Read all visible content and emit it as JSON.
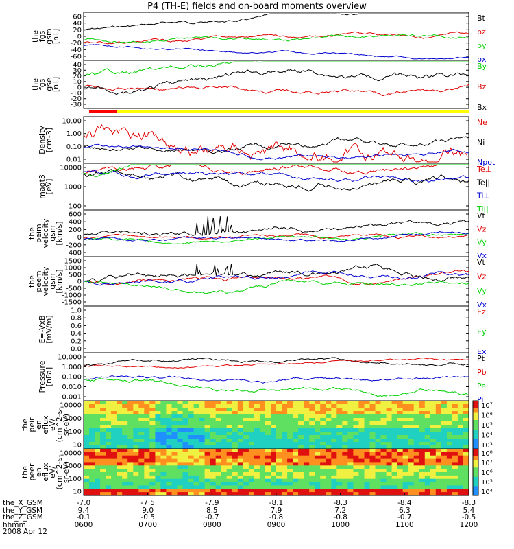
{
  "title": "P4 (TH-E) fields and on-board moments overview",
  "chart_data": [
    {
      "type": "line",
      "panel": "fgs_gsm",
      "ylabel": [
        "the",
        "fgs",
        "gsm",
        "[nT]"
      ],
      "yticks": [
        "60",
        "40",
        "20",
        "0",
        "-20",
        "-40",
        "-60"
      ],
      "ylim": [
        -60,
        65
      ],
      "series": [
        {
          "name": "Bt",
          "color": "#000000"
        },
        {
          "name": "bz",
          "color": "#e00000"
        },
        {
          "name": "by",
          "color": "#00d000"
        },
        {
          "name": "bx",
          "color": "#0000d0"
        }
      ]
    },
    {
      "type": "line",
      "panel": "fgs_dsl",
      "ylabel": [
        "the",
        "fgs",
        "gse",
        "[nT]"
      ],
      "yticks": [
        "40",
        "30",
        "20",
        "10",
        "0",
        "-10",
        "-20",
        "-30"
      ],
      "ylim": [
        -35,
        40
      ],
      "series": [
        {
          "name": "By",
          "color": "#00d000"
        },
        {
          "name": "Bz",
          "color": "#e00000"
        },
        {
          "name": "Bx",
          "color": "#000000"
        }
      ]
    },
    {
      "type": "line",
      "panel": "density",
      "ylabel": [
        "Density",
        "[cm-3]"
      ],
      "yticks": [
        "10.00",
        "1.00",
        "0.10",
        "0.01"
      ],
      "log": true,
      "series": [
        {
          "name": "Ne",
          "color": "#e00000"
        },
        {
          "name": "Ni",
          "color": "#000000"
        },
        {
          "name": "Npot",
          "color": "#0000d0"
        }
      ]
    },
    {
      "type": "line",
      "panel": "temperature",
      "ylabel": [
        "magt3",
        "[eV]"
      ],
      "yticks": [
        "10000",
        "1000",
        "100"
      ],
      "log": true,
      "series": [
        {
          "name": "Te⊥",
          "color": "#e00000"
        },
        {
          "name": "Te||",
          "color": "#000000"
        },
        {
          "name": "Ti⊥",
          "color": "#0000d0"
        },
        {
          "name": "Ti||",
          "color": "#00d000"
        }
      ]
    },
    {
      "type": "line",
      "panel": "peim_velocity",
      "ylabel": [
        "the",
        "peim",
        "velocity",
        "gsm",
        "[km/s]"
      ],
      "yticks": [
        "600",
        "400",
        "200",
        "0",
        "-200",
        "-400"
      ],
      "ylim": [
        -420,
        650
      ],
      "series": [
        {
          "name": "Vt",
          "color": "#000000"
        },
        {
          "name": "Vz",
          "color": "#e00000"
        },
        {
          "name": "Vy",
          "color": "#00d000"
        },
        {
          "name": "Vx",
          "color": "#0000d0"
        }
      ]
    },
    {
      "type": "line",
      "panel": "peem_velocity",
      "ylabel": [
        "the",
        "peem",
        "velocity",
        "gsm",
        "[km/s]"
      ],
      "yticks": [
        "1500",
        "1000",
        "500",
        "0",
        "-500",
        "-1000",
        "-1500"
      ],
      "ylim": [
        -1550,
        1600
      ],
      "series": [
        {
          "name": "Vt",
          "color": "#000000"
        },
        {
          "name": "Vz",
          "color": "#e00000"
        },
        {
          "name": "Vy",
          "color": "#00d000"
        },
        {
          "name": "Vx",
          "color": "#0000d0"
        }
      ]
    },
    {
      "type": "line",
      "panel": "efield",
      "ylabel": [
        "E=-VxB",
        "[mV/m]"
      ],
      "yticks": [
        "1.0",
        "0.8",
        "0.6",
        "0.4",
        "0.2",
        "0.0"
      ],
      "ylim": [
        0,
        1
      ],
      "series": [
        {
          "name": "Ez",
          "color": "#e00000"
        },
        {
          "name": "Ey",
          "color": "#00d000"
        },
        {
          "name": "Ex",
          "color": "#0000d0"
        }
      ]
    },
    {
      "type": "line",
      "panel": "pressure",
      "ylabel": [
        "Pressure",
        "[nPa]"
      ],
      "yticks": [
        "10.000",
        "1.000",
        "0.100",
        "0.010",
        "0.001"
      ],
      "log": true,
      "series": [
        {
          "name": "Pt",
          "color": "#000000"
        },
        {
          "name": "Pb",
          "color": "#e00000"
        },
        {
          "name": "Pe",
          "color": "#00d000"
        },
        {
          "name": "Pi",
          "color": "#0000d0"
        }
      ]
    },
    {
      "type": "heatmap",
      "panel": "peir_spec",
      "ylabel": [
        "the",
        "peir",
        "en",
        "eflux",
        "eV/",
        "(cm^2-s-",
        "sr-eV)"
      ],
      "yticks": [
        "10000",
        "1000",
        "100",
        "10"
      ],
      "colorbar": [
        "10⁷",
        "10⁶",
        "10⁵",
        "10⁴",
        "10³"
      ]
    },
    {
      "type": "heatmap",
      "panel": "peer_spec",
      "ylabel": [
        "the",
        "peer",
        "en",
        "eflux",
        "eV/",
        "(cm^2-s-",
        "sr-eV)"
      ],
      "yticks": [
        "10000",
        "1000",
        "100",
        "10"
      ],
      "colorbar": [
        "10⁸",
        "10⁷",
        "10⁶",
        "10⁵",
        "10⁴"
      ]
    }
  ],
  "xaxis": {
    "row_labels": [
      "the_X_GSM",
      "the_Y_GSM",
      "the_Z_GSM",
      "hhmm",
      "2008 Apr 12"
    ],
    "ticks": [
      {
        "x": "-7.0",
        "y": "9.4",
        "z": "-0.1",
        "t": "0600"
      },
      {
        "x": "-7.5",
        "y": "9.0",
        "z": "-0.5",
        "t": "0700"
      },
      {
        "x": "-7.9",
        "y": "8.5",
        "z": "-0.7",
        "t": "0800"
      },
      {
        "x": "-8.1",
        "y": "7.9",
        "z": "-0.8",
        "t": "0900"
      },
      {
        "x": "-8.3",
        "y": "7.2",
        "z": "-0.8",
        "t": "1000"
      },
      {
        "x": "-8.4",
        "y": "6.3",
        "z": "-0.7",
        "t": "1100"
      },
      {
        "x": "-8.3",
        "y": "5.4",
        "z": "-0.5",
        "t": "1200"
      }
    ]
  }
}
